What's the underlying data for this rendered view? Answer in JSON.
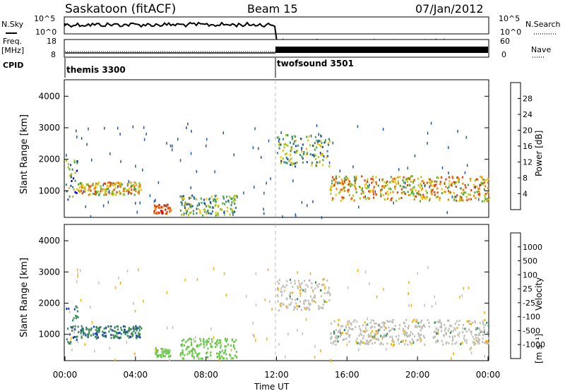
{
  "header": {
    "title": "Saskatoon (fitACF)",
    "beam": "Beam 15",
    "date": "07/Jan/2012"
  },
  "top_panels": {
    "nsky_label": "N.Sky",
    "nsky_ticks": [
      "10^5",
      "10^0"
    ],
    "nsearch_label": "N.Search",
    "nsearch_ticks": [
      "10^5",
      "10^0"
    ],
    "freq_label": "Freq.",
    "freq_unit": "[MHz]",
    "freq_ticks": [
      "18",
      "8"
    ],
    "nave_label": "Nave",
    "nave_ticks": [
      "60",
      "0"
    ],
    "cpid_label": "CPID",
    "cpid_segments": [
      {
        "name": "themis 3300",
        "start_hour": 0,
        "end_hour": 12
      },
      {
        "name": "twofsound 3501",
        "start_hour": 12,
        "end_hour": 24
      }
    ]
  },
  "chart_data": [
    {
      "type": "heatmap",
      "title": "",
      "ylabel": "Slant Range [km]",
      "xlabel": "",
      "ylim": [
        180,
        4500
      ],
      "xlim": [
        "00:00",
        "24:00"
      ],
      "yticks": [
        "1000",
        "2000",
        "3000",
        "4000"
      ],
      "colorbar": {
        "label": "Power [dB]",
        "ticks": [
          "4",
          "8",
          "12",
          "16",
          "20",
          "24",
          "28"
        ],
        "colors": [
          "#0000dd",
          "#2255aa",
          "#3c8c7c",
          "#4caa44",
          "#a8c820",
          "#f2c000",
          "#f08000",
          "#e84000",
          "#e00000"
        ]
      },
      "echo_regions_km": [
        {
          "t_start": 0.0,
          "t_end": 0.7,
          "r_low": 700,
          "r_high": 2000,
          "level": "mixed"
        },
        {
          "t_start": 0.7,
          "t_end": 4.3,
          "r_low": 900,
          "r_high": 1300,
          "level": "high"
        },
        {
          "t_start": 5.0,
          "t_end": 6.0,
          "r_low": 300,
          "r_high": 600,
          "level": "strong"
        },
        {
          "t_start": 6.5,
          "t_end": 9.7,
          "r_low": 250,
          "r_high": 900,
          "level": "medium"
        },
        {
          "t_start": 12.0,
          "t_end": 15.0,
          "r_low": 1800,
          "r_high": 2800,
          "level": "medium"
        },
        {
          "t_start": 15.0,
          "t_end": 24.0,
          "r_low": 700,
          "r_high": 1500,
          "level": "high"
        }
      ]
    },
    {
      "type": "heatmap",
      "title": "",
      "ylabel": "Slant Range [km]",
      "xlabel": "Time UT",
      "ylim": [
        180,
        4500
      ],
      "xlim": [
        "00:00",
        "24:00"
      ],
      "yticks": [
        "1000",
        "2000",
        "3000",
        "4000"
      ],
      "xticks": [
        "00:00",
        "04:00",
        "08:00",
        "12:00",
        "16:00",
        "20:00",
        "00:00"
      ],
      "colorbar": {
        "label": "Velocity",
        "unit": "[m s⁻¹]",
        "ticks": [
          "1000",
          "500",
          "100",
          "25",
          "-25",
          "-100",
          "-500",
          "-1000"
        ],
        "colors": [
          "#1c3cb4",
          "#3c6cb4",
          "#3c8c5c",
          "#4c9c4c",
          "#6cc84c",
          "#c8c8c0",
          "#f2b000",
          "#f08000",
          "#e84000",
          "#e00000"
        ]
      },
      "ground_scatter_color": "#c0c0b8"
    }
  ]
}
